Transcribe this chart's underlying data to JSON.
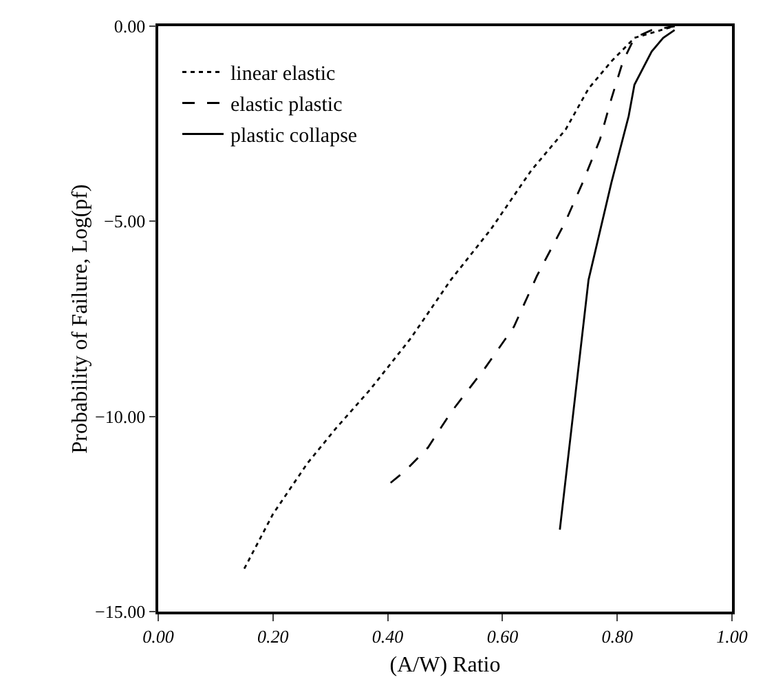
{
  "chart_data": {
    "type": "line",
    "xlabel": "(A/W) Ratio",
    "ylabel": "Probability of Failure, Log(pf)",
    "xlim": [
      0,
      1
    ],
    "ylim": [
      -15,
      0
    ],
    "xticks": [
      {
        "value": 0,
        "label": "0.00"
      },
      {
        "value": 0.2,
        "label": "0.20"
      },
      {
        "value": 0.4,
        "label": "0.40"
      },
      {
        "value": 0.6,
        "label": "0.60"
      },
      {
        "value": 0.8,
        "label": "0.80"
      },
      {
        "value": 1,
        "label": "1.00"
      }
    ],
    "yticks": [
      {
        "value": 0,
        "label": "0.00"
      },
      {
        "value": -5,
        "label": "−5.00"
      },
      {
        "value": -10,
        "label": "−10.00"
      },
      {
        "value": -15,
        "label": "−15.00"
      }
    ],
    "grid": false,
    "legend": "top left",
    "marker": "none",
    "series": [
      {
        "name": "linear elastic",
        "color": "#000000",
        "line_style": "dotted",
        "x": [
          0.15,
          0.2,
          0.26,
          0.31,
          0.37,
          0.44,
          0.51,
          0.58,
          0.65,
          0.71,
          0.75,
          0.79,
          0.83,
          0.9
        ],
        "values": [
          -13.9,
          -12.5,
          -11.2,
          -10.3,
          -9.3,
          -8.0,
          -6.5,
          -5.2,
          -3.7,
          -2.65,
          -1.6,
          -0.9,
          -0.3,
          0
        ]
      },
      {
        "name": "elastic plastic",
        "color": "#000000",
        "line_style": "dashed",
        "x": [
          0.405,
          0.43,
          0.47,
          0.51,
          0.57,
          0.62,
          0.66,
          0.71,
          0.74,
          0.77,
          0.79,
          0.81,
          0.83,
          0.86,
          0.9
        ],
        "values": [
          -11.7,
          -11.4,
          -10.8,
          -9.9,
          -8.75,
          -7.7,
          -6.4,
          -5.0,
          -4.0,
          -2.9,
          -1.85,
          -0.9,
          -0.3,
          -0.1,
          0
        ]
      },
      {
        "name": "plastic collapse",
        "color": "#000000",
        "line_style": "solid",
        "x": [
          0.7,
          0.75,
          0.79,
          0.82,
          0.83,
          0.86,
          0.88,
          0.9
        ],
        "values": [
          -12.9,
          -6.5,
          -4.0,
          -2.3,
          -1.5,
          -0.65,
          -0.3,
          -0.1
        ]
      }
    ]
  }
}
